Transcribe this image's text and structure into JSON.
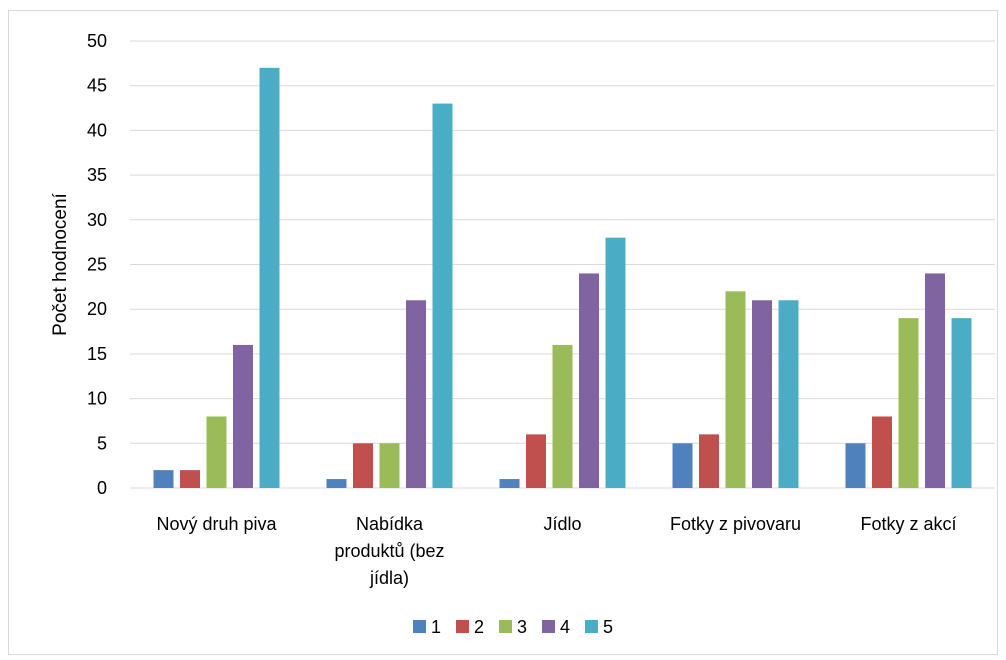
{
  "chart_data": {
    "type": "bar",
    "title": "",
    "xlabel": "",
    "ylabel": "Počet hodnocení",
    "ylim": [
      0,
      50
    ],
    "yticks": [
      0,
      5,
      10,
      15,
      20,
      25,
      30,
      35,
      40,
      45,
      50
    ],
    "grid": true,
    "legend_position": "bottom",
    "categories": [
      [
        "Nový druh piva"
      ],
      [
        "Nabídka",
        "produktů (bez",
        "jídla)"
      ],
      [
        "Jídlo"
      ],
      [
        "Fotky z pivovaru"
      ],
      [
        "Fotky z akcí"
      ]
    ],
    "series": [
      {
        "name": "1",
        "color": "#4f81bd",
        "values": [
          2,
          1,
          1,
          5,
          5
        ]
      },
      {
        "name": "2",
        "color": "#c0504d",
        "values": [
          2,
          5,
          6,
          6,
          8
        ]
      },
      {
        "name": "3",
        "color": "#9bbb59",
        "values": [
          8,
          5,
          16,
          22,
          19
        ]
      },
      {
        "name": "4",
        "color": "#8064a2",
        "values": [
          16,
          21,
          24,
          21,
          24
        ]
      },
      {
        "name": "5",
        "color": "#4bacc6",
        "values": [
          47,
          43,
          28,
          21,
          19
        ]
      }
    ],
    "colors": {
      "gridline": "#d9d9d9",
      "border": "#d9d9d9"
    }
  }
}
